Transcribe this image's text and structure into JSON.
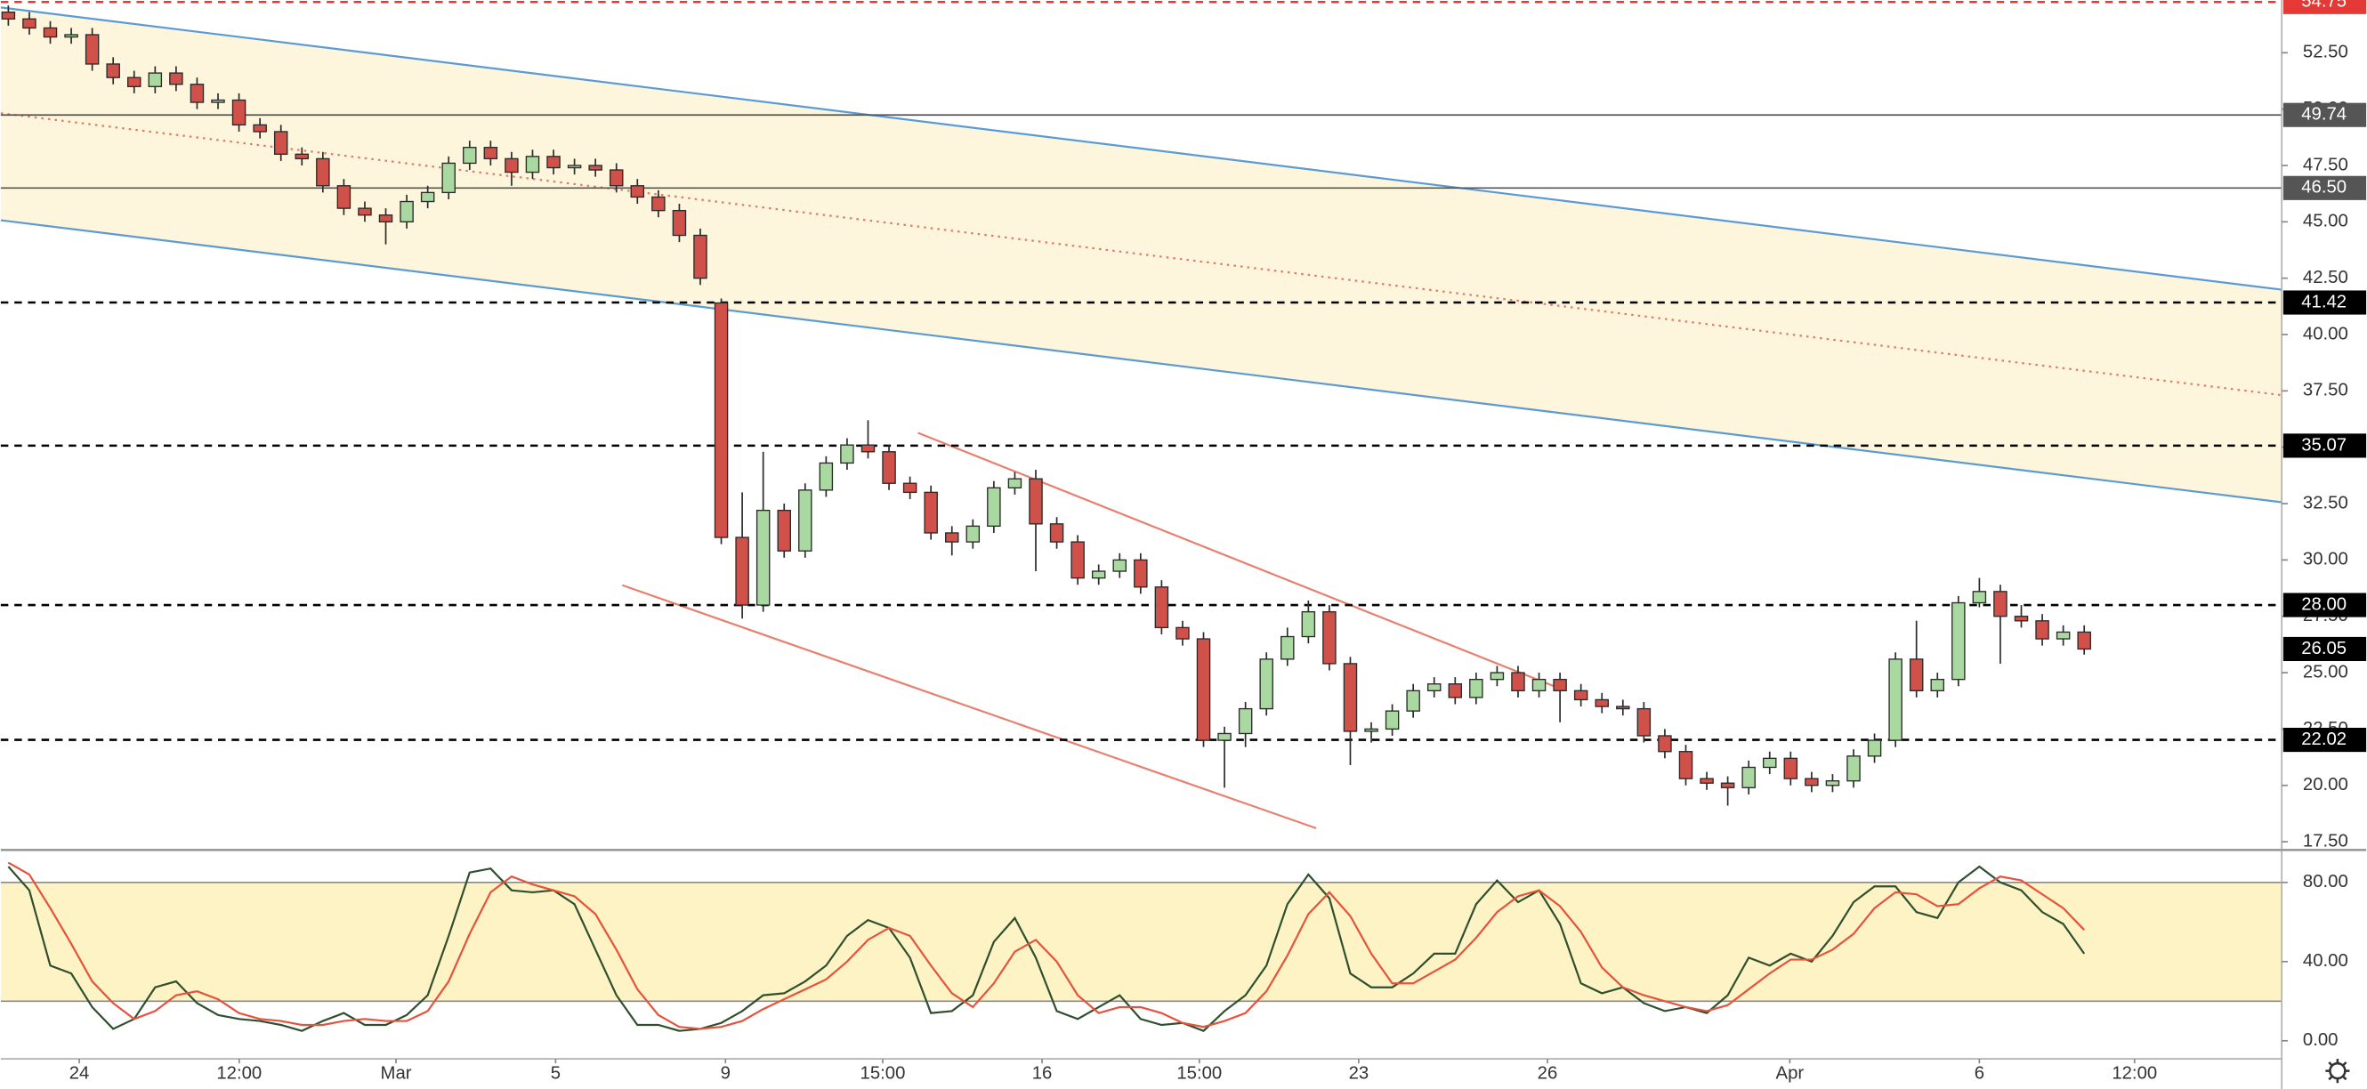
{
  "chart_data": {
    "type": "candlestick",
    "xlim": [
      -0.36,
      108.42
    ],
    "ylim": [
      17.17,
      54.84
    ],
    "yticks": [
      {
        "value": 17.5,
        "label": "17.50"
      },
      {
        "value": 20,
        "label": "20.00"
      },
      {
        "value": 22.5,
        "label": "22.50"
      },
      {
        "value": 25,
        "label": "25.00"
      },
      {
        "value": 27.5,
        "label": "27.50"
      },
      {
        "value": 30,
        "label": "30.00"
      },
      {
        "value": 32.5,
        "label": "32.50"
      },
      {
        "value": 35,
        "label": "35.00"
      },
      {
        "value": 37.5,
        "label": "37.50"
      },
      {
        "value": 40,
        "label": "40.00"
      },
      {
        "value": 42.5,
        "label": "42.50"
      },
      {
        "value": 45,
        "label": "45.00"
      },
      {
        "value": 47.5,
        "label": "47.50"
      },
      {
        "value": 50,
        "label": "50.00"
      },
      {
        "value": 52.5,
        "label": "52.50"
      }
    ],
    "xticks": [
      {
        "value": 3.38,
        "label": "24"
      },
      {
        "value": 11.01,
        "label": "12:00"
      },
      {
        "value": 18.49,
        "label": "Mar"
      },
      {
        "value": 26.1,
        "label": "5"
      },
      {
        "value": 34.2,
        "label": "9"
      },
      {
        "value": 41.7,
        "label": "15:00"
      },
      {
        "value": 49.3,
        "label": "16"
      },
      {
        "value": 56.8,
        "label": "15:00"
      },
      {
        "value": 64.4,
        "label": "23"
      },
      {
        "value": 73.4,
        "label": "26"
      },
      {
        "value": 84.96,
        "label": "Apr"
      },
      {
        "value": 94.0,
        "label": "6"
      },
      {
        "value": 101.4,
        "label": "12:00"
      }
    ],
    "up_color": "#a9d8a0",
    "down_color": "#d0504a",
    "wick_color": "#2b2b2b",
    "open": [
      54.3,
      54.0,
      53.6,
      53.2,
      53.3,
      52.0,
      51.4,
      51.0,
      51.6,
      51.1,
      50.3,
      50.4,
      49.3,
      49.0,
      48.0,
      47.8,
      46.6,
      45.6,
      45.3,
      45.0,
      45.9,
      46.3,
      47.6,
      48.3,
      47.8,
      47.2,
      47.9,
      47.4,
      47.5,
      47.3,
      46.6,
      46.1,
      45.5,
      44.4,
      41.4,
      31.0,
      28.0,
      32.2,
      30.4,
      33.1,
      34.3,
      35.1,
      34.8,
      33.4,
      33.0,
      31.2,
      30.8,
      31.5,
      33.2,
      33.6,
      31.6,
      30.8,
      29.2,
      29.5,
      30.0,
      28.8,
      27.0,
      26.5,
      22.0,
      22.3,
      23.4,
      25.6,
      26.6,
      27.7,
      25.4,
      22.4,
      22.5,
      23.3,
      24.2,
      24.5,
      23.9,
      24.7,
      25.0,
      24.2,
      24.7,
      24.2,
      23.8,
      23.5,
      23.4,
      22.2,
      21.5,
      20.3,
      20.1,
      19.9,
      20.8,
      21.2,
      20.3,
      20.0,
      20.2,
      21.3,
      22.0,
      25.6,
      24.2,
      24.7,
      28.1,
      28.6,
      27.5,
      27.3,
      26.5,
      26.8
    ],
    "high": [
      54.6,
      54.3,
      53.9,
      53.6,
      53.6,
      52.3,
      51.7,
      51.9,
      51.9,
      51.4,
      50.7,
      50.7,
      49.6,
      49.3,
      48.3,
      48.1,
      46.9,
      45.9,
      45.6,
      46.2,
      46.6,
      47.9,
      48.6,
      48.6,
      48.1,
      48.2,
      48.2,
      47.8,
      47.8,
      47.6,
      46.9,
      46.4,
      45.8,
      44.7,
      41.6,
      33.0,
      34.8,
      32.5,
      33.4,
      34.6,
      35.4,
      36.2,
      35.1,
      33.7,
      33.3,
      31.5,
      31.8,
      33.5,
      33.9,
      34.0,
      31.9,
      31.1,
      29.8,
      30.3,
      30.3,
      29.1,
      27.3,
      26.8,
      22.6,
      23.7,
      25.9,
      27.0,
      28.2,
      28.0,
      25.7,
      22.8,
      23.6,
      24.5,
      24.8,
      24.8,
      25.0,
      25.3,
      25.3,
      25.0,
      25.0,
      24.5,
      24.1,
      23.8,
      23.7,
      22.5,
      21.8,
      20.6,
      20.4,
      21.1,
      21.5,
      21.5,
      20.6,
      20.5,
      21.6,
      22.3,
      25.9,
      27.3,
      25.0,
      28.4,
      29.2,
      28.9,
      28.0,
      27.6,
      27.1,
      27.1
    ],
    "low": [
      53.7,
      53.3,
      52.9,
      52.9,
      51.7,
      51.1,
      50.7,
      50.7,
      50.8,
      50.0,
      50.0,
      49.0,
      48.7,
      47.7,
      47.5,
      46.3,
      45.3,
      45.0,
      44.0,
      44.7,
      45.6,
      46.0,
      47.3,
      47.5,
      46.6,
      46.9,
      47.1,
      47.1,
      47.0,
      46.3,
      45.8,
      45.2,
      44.1,
      42.2,
      30.7,
      27.4,
      27.7,
      30.1,
      30.1,
      32.8,
      34.0,
      34.5,
      33.1,
      32.7,
      30.9,
      30.2,
      30.5,
      31.2,
      32.9,
      29.5,
      30.5,
      28.9,
      28.9,
      29.2,
      28.5,
      26.7,
      26.2,
      21.7,
      19.9,
      21.7,
      23.1,
      25.3,
      26.3,
      25.1,
      20.9,
      21.9,
      22.2,
      23.0,
      23.9,
      23.6,
      23.6,
      24.4,
      23.9,
      23.9,
      22.8,
      23.5,
      23.2,
      23.1,
      21.9,
      21.2,
      20.0,
      19.8,
      19.1,
      19.6,
      20.5,
      20.0,
      19.7,
      19.7,
      19.9,
      21.0,
      21.7,
      23.9,
      23.9,
      24.4,
      27.9,
      25.4,
      27.0,
      26.2,
      26.2,
      25.8
    ],
    "close": [
      54.0,
      53.6,
      53.2,
      53.3,
      52.0,
      51.4,
      51.0,
      51.6,
      51.1,
      50.3,
      50.4,
      49.3,
      49.0,
      48.0,
      47.8,
      46.6,
      45.6,
      45.3,
      45.0,
      45.9,
      46.3,
      47.6,
      48.3,
      47.8,
      47.2,
      47.9,
      47.4,
      47.5,
      47.3,
      46.6,
      46.1,
      45.5,
      44.4,
      42.5,
      31.0,
      28.0,
      32.2,
      30.4,
      33.1,
      34.3,
      35.1,
      34.8,
      33.4,
      33.0,
      31.2,
      30.8,
      31.5,
      33.2,
      33.6,
      31.6,
      30.8,
      29.2,
      29.5,
      30.0,
      28.8,
      27.0,
      26.5,
      22.0,
      22.3,
      23.4,
      25.6,
      26.6,
      27.7,
      25.4,
      22.4,
      22.5,
      23.3,
      24.2,
      24.5,
      23.9,
      24.7,
      25.0,
      24.2,
      24.7,
      24.2,
      23.8,
      23.5,
      23.4,
      22.2,
      21.5,
      20.3,
      20.1,
      19.9,
      20.8,
      21.2,
      20.3,
      20.0,
      20.2,
      21.3,
      22.0,
      25.6,
      24.2,
      24.7,
      28.1,
      28.6,
      27.5,
      27.3,
      26.5,
      26.8,
      26.05
    ],
    "channel": {
      "fill": "#fdf6dc",
      "upper": {
        "color": "#5b9bd5",
        "x": [
          -0.36,
          108.42
        ],
        "y": [
          54.51,
          41.99
        ]
      },
      "lower": {
        "color": "#5b9bd5",
        "x": [
          -0.36,
          108.42
        ],
        "y": [
          45.07,
          32.56
        ]
      },
      "middle": {
        "color": "#e07a6a",
        "x": [
          -0.36,
          108.42
        ],
        "y": [
          49.82,
          37.31
        ]
      }
    },
    "trendlines": [
      {
        "color": "#e8806f",
        "x": [
          43.38,
          73.74
        ],
        "y": [
          35.64,
          24.39
        ]
      },
      {
        "color": "#e8806f",
        "x": [
          29.28,
          62.37
        ],
        "y": [
          28.88,
          18.1
        ]
      }
    ],
    "levels": [
      {
        "value": 54.75,
        "style": "dashed",
        "color": "#e53935"
      },
      {
        "value": 49.74,
        "style": "solid",
        "color": "#555555"
      },
      {
        "value": 46.5,
        "label": "46.50",
        "style": "solid",
        "color": "#555555"
      },
      {
        "value": 41.42,
        "style": "dashed",
        "color": "#000000"
      },
      {
        "value": 35.07,
        "style": "dashed",
        "color": "#000000"
      },
      {
        "value": 28,
        "label": "28.00",
        "style": "dashed",
        "color": "#000000"
      },
      {
        "value": 22.02,
        "style": "dashed",
        "color": "#000000"
      }
    ],
    "last_price": 26.05,
    "oscillator": {
      "ylim": [
        -7.6,
        94.5
      ],
      "yticks": [
        {
          "value": 0,
          "label": "0.00"
        },
        {
          "value": 40,
          "label": "40.00"
        },
        {
          "value": 80,
          "label": "80.00"
        }
      ],
      "band": [
        20,
        80
      ],
      "band_color": "#fdf3c4",
      "series": [
        {
          "color": "#2f4f2f",
          "values": [
            88,
            76,
            38,
            34,
            17,
            6,
            11,
            27,
            30,
            19,
            13,
            11,
            10,
            8,
            5,
            10,
            14,
            8,
            8,
            13,
            23,
            53,
            85,
            87,
            76,
            75,
            76,
            69,
            46,
            23,
            8,
            8,
            5,
            6,
            9,
            15,
            23,
            24,
            30,
            38,
            53,
            61,
            57,
            42,
            14,
            15,
            23,
            50,
            62,
            42,
            15,
            11,
            17,
            23,
            11,
            8,
            9,
            5,
            15,
            23,
            38,
            69,
            84,
            72,
            34,
            27,
            27,
            34,
            44,
            44,
            69,
            81,
            70,
            76,
            59,
            29,
            24,
            27,
            19,
            15,
            17,
            14,
            23,
            42,
            38,
            44,
            40,
            53,
            70,
            78,
            78,
            65,
            62,
            80,
            88,
            80,
            76,
            65,
            59,
            44
          ]
        },
        {
          "color": "#e5533d",
          "values": [
            90,
            84,
            67,
            49,
            30,
            19,
            11,
            15,
            23,
            25,
            21,
            14,
            11,
            10,
            8,
            8,
            10,
            11,
            10,
            10,
            15,
            30,
            54,
            75,
            83,
            79,
            76,
            73,
            64,
            46,
            26,
            13,
            7,
            6,
            7,
            10,
            16,
            21,
            26,
            31,
            40,
            51,
            57,
            53,
            38,
            24,
            17,
            29,
            45,
            51,
            40,
            23,
            14,
            17,
            17,
            14,
            9,
            7,
            10,
            14,
            25,
            43,
            64,
            75,
            63,
            44,
            29,
            29,
            35,
            41,
            52,
            65,
            73,
            76,
            68,
            55,
            37,
            27,
            23,
            20,
            17,
            15,
            18,
            26,
            34,
            41,
            41,
            46,
            54,
            67,
            75,
            74,
            68,
            69,
            77,
            83,
            81,
            74,
            67,
            56
          ]
        }
      ]
    }
  }
}
